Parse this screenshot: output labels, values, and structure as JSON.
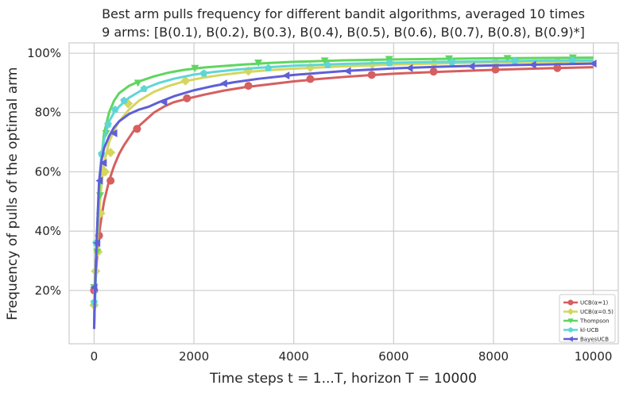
{
  "chart_data": {
    "type": "line",
    "title": "Best arm pulls frequency for different bandit algorithms, averaged 10 times",
    "subtitle": "9 arms: [B(0.1), B(0.2), B(0.3), B(0.4), B(0.5), B(0.6), B(0.7), B(0.8), B(0.9)*]",
    "xlabel": "Time steps t = 1...T, horizon T = 10000",
    "ylabel": "Frequency of pulls of the optimal arm",
    "xlim": [
      -500,
      10500
    ],
    "ylim": [
      0.02,
      1.035
    ],
    "xticks": [
      0,
      2000,
      4000,
      6000,
      8000,
      10000
    ],
    "xtick_labels": [
      "0",
      "2000",
      "4000",
      "6000",
      "8000",
      "10000"
    ],
    "yticks": [
      0.2,
      0.4,
      0.6,
      0.8,
      1.0
    ],
    "ytick_labels": [
      "20%",
      "40%",
      "60%",
      "80%",
      "100%"
    ],
    "grid": true,
    "legend_position": "bottom-right",
    "series": [
      {
        "name": "UCB(α=1)",
        "color": "#d65f5f",
        "marker": "circle",
        "x": [
          0,
          20,
          50,
          100,
          150,
          200,
          300,
          400,
          500,
          600,
          800,
          1000,
          1200,
          1400,
          1600,
          1900,
          2200,
          2600,
          3000,
          3500,
          4000,
          4500,
          5000,
          5500,
          6000,
          7000,
          8000,
          9000,
          10000
        ],
        "y": [
          0.07,
          0.2,
          0.29,
          0.39,
          0.45,
          0.5,
          0.57,
          0.62,
          0.66,
          0.69,
          0.74,
          0.77,
          0.8,
          0.82,
          0.835,
          0.848,
          0.86,
          0.874,
          0.885,
          0.895,
          0.905,
          0.913,
          0.92,
          0.926,
          0.931,
          0.938,
          0.944,
          0.949,
          0.953
        ],
        "marker_x": [
          0,
          100,
          330,
          860,
          1860,
          3090,
          4330,
          5560,
          6800,
          8040,
          9280
        ],
        "marker_y": [
          0.2,
          0.385,
          0.57,
          0.745,
          0.848,
          0.89,
          0.913,
          0.927,
          0.938,
          0.945,
          0.95
        ]
      },
      {
        "name": "UCB(α=0.5)",
        "color": "#d5d65f",
        "marker": "diamond",
        "x": [
          0,
          20,
          50,
          100,
          150,
          200,
          300,
          400,
          500,
          700,
          900,
          1200,
          1500,
          1800,
          2200,
          2600,
          3000,
          3500,
          4000,
          5000,
          6000,
          7000,
          8000,
          9000,
          10000
        ],
        "y": [
          0.12,
          0.27,
          0.33,
          0.46,
          0.56,
          0.63,
          0.7,
          0.74,
          0.77,
          0.81,
          0.84,
          0.87,
          0.89,
          0.905,
          0.918,
          0.928,
          0.936,
          0.943,
          0.948,
          0.956,
          0.962,
          0.966,
          0.969,
          0.971,
          0.973
        ],
        "marker_x": [
          0,
          30,
          80,
          130,
          220,
          330,
          680,
          1830,
          3090,
          4330,
          5570,
          6810,
          8050,
          9290
        ],
        "marker_y": [
          0.15,
          0.265,
          0.33,
          0.46,
          0.6,
          0.665,
          0.83,
          0.907,
          0.94,
          0.952,
          0.962,
          0.967,
          0.97,
          0.972
        ]
      },
      {
        "name": "Thompson",
        "color": "#5fd65f",
        "marker": "triangle-down",
        "x": [
          0,
          20,
          50,
          100,
          150,
          200,
          300,
          400,
          500,
          700,
          900,
          1200,
          1500,
          1800,
          2200,
          2600,
          3000,
          3500,
          4000,
          5000,
          6000,
          7000,
          8000,
          9000,
          10000
        ],
        "y": [
          0.1,
          0.22,
          0.35,
          0.53,
          0.65,
          0.73,
          0.8,
          0.84,
          0.865,
          0.89,
          0.905,
          0.922,
          0.935,
          0.944,
          0.952,
          0.957,
          0.962,
          0.967,
          0.971,
          0.976,
          0.979,
          0.981,
          0.983,
          0.984,
          0.985
        ],
        "marker_x": [
          0,
          60,
          120,
          240,
          880,
          2020,
          3290,
          4620,
          5910,
          7110,
          8280,
          9590
        ],
        "marker_y": [
          0.21,
          0.33,
          0.52,
          0.73,
          0.9,
          0.95,
          0.968,
          0.975,
          0.98,
          0.982,
          0.983,
          0.985
        ]
      },
      {
        "name": "kl-UCB",
        "color": "#5fd6d5",
        "marker": "pentagon",
        "x": [
          0,
          20,
          50,
          100,
          150,
          200,
          300,
          400,
          500,
          700,
          1000,
          1300,
          1600,
          2000,
          2400,
          2800,
          3300,
          4000,
          5000,
          6000,
          7000,
          8000,
          9000,
          10000
        ],
        "y": [
          0.1,
          0.16,
          0.36,
          0.56,
          0.66,
          0.71,
          0.77,
          0.8,
          0.82,
          0.85,
          0.88,
          0.9,
          0.914,
          0.928,
          0.937,
          0.944,
          0.951,
          0.958,
          0.964,
          0.968,
          0.971,
          0.973,
          0.975,
          0.976
        ],
        "marker_x": [
          0,
          40,
          150,
          280,
          420,
          600,
          1000,
          2200,
          3490,
          4680,
          5920,
          7170,
          8430,
          9580
        ],
        "marker_y": [
          0.16,
          0.36,
          0.66,
          0.76,
          0.81,
          0.84,
          0.88,
          0.932,
          0.95,
          0.96,
          0.967,
          0.971,
          0.974,
          0.976
        ]
      },
      {
        "name": "BayesUCB",
        "color": "#5f5fd6",
        "marker": "triangle-left",
        "x": [
          0,
          20,
          50,
          100,
          150,
          200,
          300,
          400,
          500,
          700,
          900,
          1100,
          1300,
          1600,
          2000,
          2400,
          2800,
          3300,
          4000,
          5000,
          6000,
          7000,
          8000,
          9000,
          10000
        ],
        "y": [
          0.07,
          0.21,
          0.36,
          0.57,
          0.64,
          0.68,
          0.72,
          0.75,
          0.77,
          0.795,
          0.81,
          0.82,
          0.835,
          0.855,
          0.875,
          0.89,
          0.902,
          0.914,
          0.927,
          0.94,
          0.949,
          0.955,
          0.959,
          0.962,
          0.965
        ],
        "marker_x": [
          0,
          60,
          110,
          190,
          400,
          1400,
          2600,
          3850,
          5080,
          6320,
          7560,
          8790,
          10000
        ],
        "marker_y": [
          0.21,
          0.36,
          0.57,
          0.63,
          0.73,
          0.835,
          0.898,
          0.925,
          0.94,
          0.95,
          0.956,
          0.961,
          0.965
        ]
      }
    ]
  }
}
